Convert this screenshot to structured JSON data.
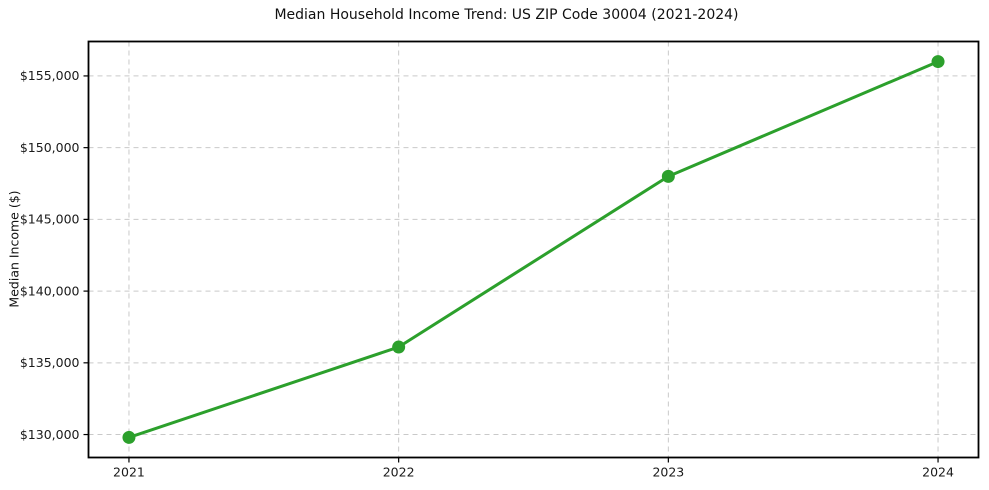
{
  "figure": {
    "background": "#ffffff"
  },
  "chart_data": {
    "type": "line",
    "title": "Median Household Income Trend: US ZIP Code 30004 (2021-2024)",
    "xlabel": "",
    "ylabel": "Median Income ($)",
    "x": [
      2021,
      2022,
      2023,
      2024
    ],
    "x_tick_labels": [
      "2021",
      "2022",
      "2023",
      "2024"
    ],
    "values": [
      129800,
      136100,
      148000,
      156000
    ],
    "y_ticks": [
      130000,
      135000,
      140000,
      145000,
      150000,
      155000
    ],
    "y_tick_labels": [
      "$130,000",
      "$135,000",
      "$140,000",
      "$145,000",
      "$150,000",
      "$155,000"
    ],
    "xlim": [
      2020.85,
      2024.15
    ],
    "ylim": [
      128400,
      157400
    ],
    "grid": "both",
    "grid_style": "dashed",
    "legend_position": "none",
    "colors": {
      "line": "#2ca02c",
      "marker": "#2ca02c",
      "grid": "#c9c9c9",
      "axis": "#000000",
      "tick_text": "#1a1a1a"
    }
  }
}
